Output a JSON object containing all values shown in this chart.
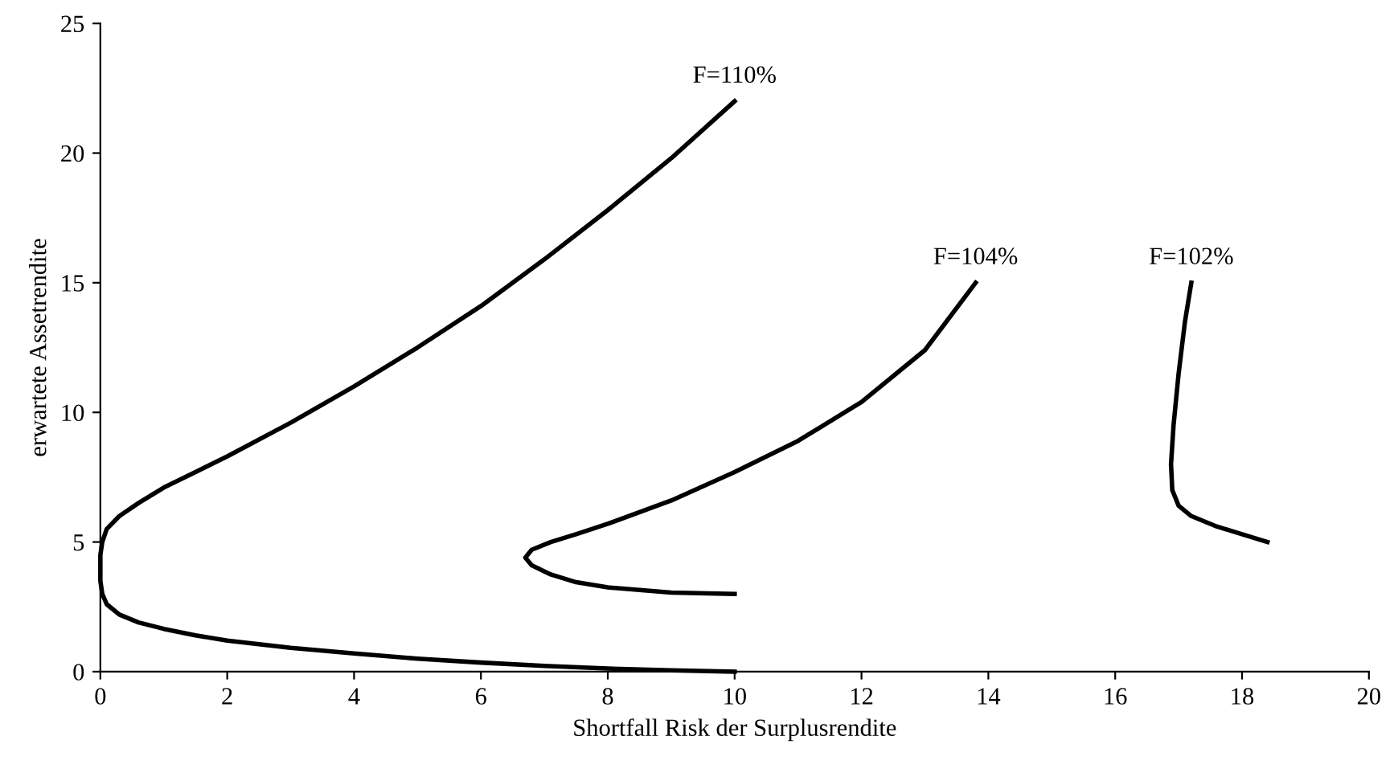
{
  "chart_data": {
    "type": "line",
    "xlabel": "Shortfall Risk der Surplusrendite",
    "ylabel": "erwartete Assetrendite",
    "xlim": [
      0,
      20
    ],
    "ylim": [
      0,
      25
    ],
    "xticks": [
      0,
      2,
      4,
      6,
      8,
      10,
      12,
      14,
      16,
      18,
      20
    ],
    "yticks": [
      0,
      5,
      10,
      15,
      20,
      25
    ],
    "grid": false,
    "legend": false,
    "marker": "none",
    "line_style": "solid",
    "series": [
      {
        "color": "#000000",
        "x": [
          10,
          9,
          8,
          7,
          6,
          5,
          4,
          3,
          2,
          1.5,
          1,
          0.6,
          0.3,
          0.1,
          0.03,
          0,
          0,
          0.03,
          0.1,
          0.3,
          0.6,
          1,
          1.5,
          2,
          3,
          4,
          5,
          6,
          7,
          8,
          9,
          10
        ],
        "values": [
          0,
          0.05,
          0.12,
          0.22,
          0.35,
          0.5,
          0.7,
          0.92,
          1.2,
          1.4,
          1.65,
          1.9,
          2.2,
          2.6,
          3.0,
          3.5,
          4.5,
          5.0,
          5.5,
          6.0,
          6.5,
          7.1,
          7.7,
          8.3,
          9.6,
          11,
          12.5,
          14.1,
          15.9,
          17.8,
          19.8,
          22
        ]
      },
      {
        "color": "#000000",
        "x": [
          10,
          9,
          8,
          7.5,
          7.1,
          6.8,
          6.7,
          6.8,
          7.1,
          7.5,
          8,
          9,
          10,
          11,
          12,
          13,
          13.8
        ],
        "values": [
          3,
          3.05,
          3.25,
          3.45,
          3.75,
          4.1,
          4.4,
          4.7,
          5.0,
          5.3,
          5.7,
          6.6,
          7.7,
          8.9,
          10.4,
          12.4,
          15
        ]
      },
      {
        "color": "#000000",
        "x": [
          17.2,
          17.1,
          17.0,
          16.92,
          16.88,
          16.9,
          17.0,
          17.2,
          17.6,
          18.0,
          18.4
        ],
        "values": [
          15,
          13.5,
          11.5,
          9.5,
          8,
          7,
          6.4,
          6.0,
          5.6,
          5.3,
          5
        ]
      }
    ],
    "annotations": [
      {
        "text": "F=110%",
        "x": 10,
        "y": 22
      },
      {
        "text": "F=104%",
        "x": 13.8,
        "y": 15
      },
      {
        "text": "F=102%",
        "x": 17.2,
        "y": 15
      }
    ]
  }
}
